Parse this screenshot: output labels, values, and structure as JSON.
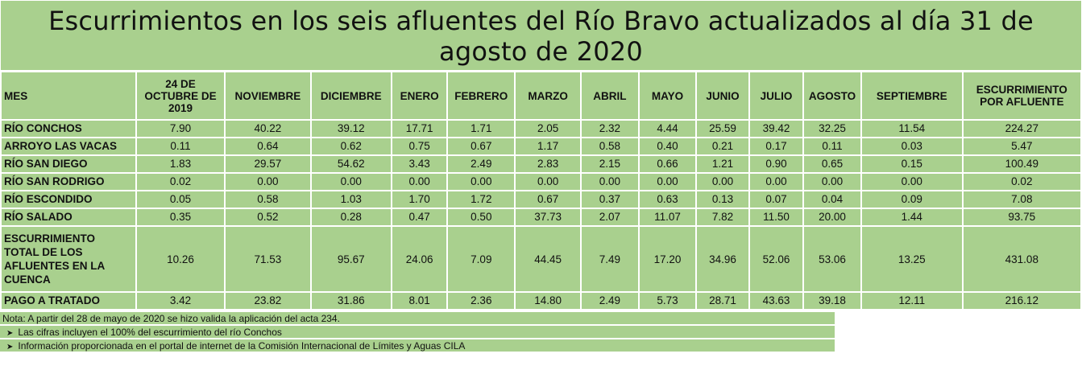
{
  "title": "Escurrimientos en los seis afluentes del Río Bravo actualizados al día 31 de agosto de 2020",
  "table": {
    "headers": [
      "MES",
      "24 DE OCTUBRE DE 2019",
      "NOVIEMBRE",
      "DICIEMBRE",
      "ENERO",
      "FEBRERO",
      "MARZO",
      "ABRIL",
      "MAYO",
      "JUNIO",
      "JULIO",
      "AGOSTO",
      "SEPTIEMBRE",
      "ESCURRIMIENTO POR AFLUENTE"
    ],
    "rows": [
      [
        "RÍO CONCHOS",
        "7.90",
        "40.22",
        "39.12",
        "17.71",
        "1.71",
        "2.05",
        "2.32",
        "4.44",
        "25.59",
        "39.42",
        "32.25",
        "11.54",
        "224.27"
      ],
      [
        "ARROYO LAS VACAS",
        "0.11",
        "0.64",
        "0.62",
        "0.75",
        "0.67",
        "1.17",
        "0.58",
        "0.40",
        "0.21",
        "0.17",
        "0.11",
        "0.03",
        "5.47"
      ],
      [
        "RÍO SAN DIEGO",
        "1.83",
        "29.57",
        "54.62",
        "3.43",
        "2.49",
        "2.83",
        "2.15",
        "0.66",
        "1.21",
        "0.90",
        "0.65",
        "0.15",
        "100.49"
      ],
      [
        "RÍO SAN RODRIGO",
        "0.02",
        "0.00",
        "0.00",
        "0.00",
        "0.00",
        "0.00",
        "0.00",
        "0.00",
        "0.00",
        "0.00",
        "0.00",
        "0.00",
        "0.02"
      ],
      [
        "RÍO ESCONDIDO",
        "0.05",
        "0.58",
        "1.03",
        "1.70",
        "1.72",
        "0.67",
        "0.37",
        "0.63",
        "0.13",
        "0.07",
        "0.04",
        "0.09",
        "7.08"
      ],
      [
        "RÍO SALADO",
        "0.35",
        "0.52",
        "0.28",
        "0.47",
        "0.50",
        "37.73",
        "2.07",
        "11.07",
        "7.82",
        "11.50",
        "20.00",
        "1.44",
        "93.75"
      ],
      [
        "ESCURRIMIENTO TOTAL DE LOS AFLUENTES EN LA CUENCA",
        "10.26",
        "71.53",
        "95.67",
        "24.06",
        "7.09",
        "44.45",
        "7.49",
        "17.20",
        "34.96",
        "52.06",
        "53.06",
        "13.25",
        "431.08"
      ],
      [
        "PAGO A TRATADO",
        "3.42",
        "23.82",
        "31.86",
        "8.01",
        "2.36",
        "14.80",
        "2.49",
        "5.73",
        "28.71",
        "43.63",
        "39.18",
        "12.11",
        "216.12"
      ]
    ]
  },
  "notes": {
    "note": "Nota: A partir del 28 de mayo de 2020 se hizo valida la aplicación del acta 234.",
    "bullet_1": "Las cifras incluyen el 100% del escurrimiento del río Conchos",
    "bullet_2": "Información proporcionada en el portal de internet de la Comisión Internacional de Límites y Aguas CILA"
  },
  "colors": {
    "cell_background": "#a9d08e",
    "grid": "#ffffff"
  },
  "icons": {
    "bullet": "arrow-right-icon"
  }
}
